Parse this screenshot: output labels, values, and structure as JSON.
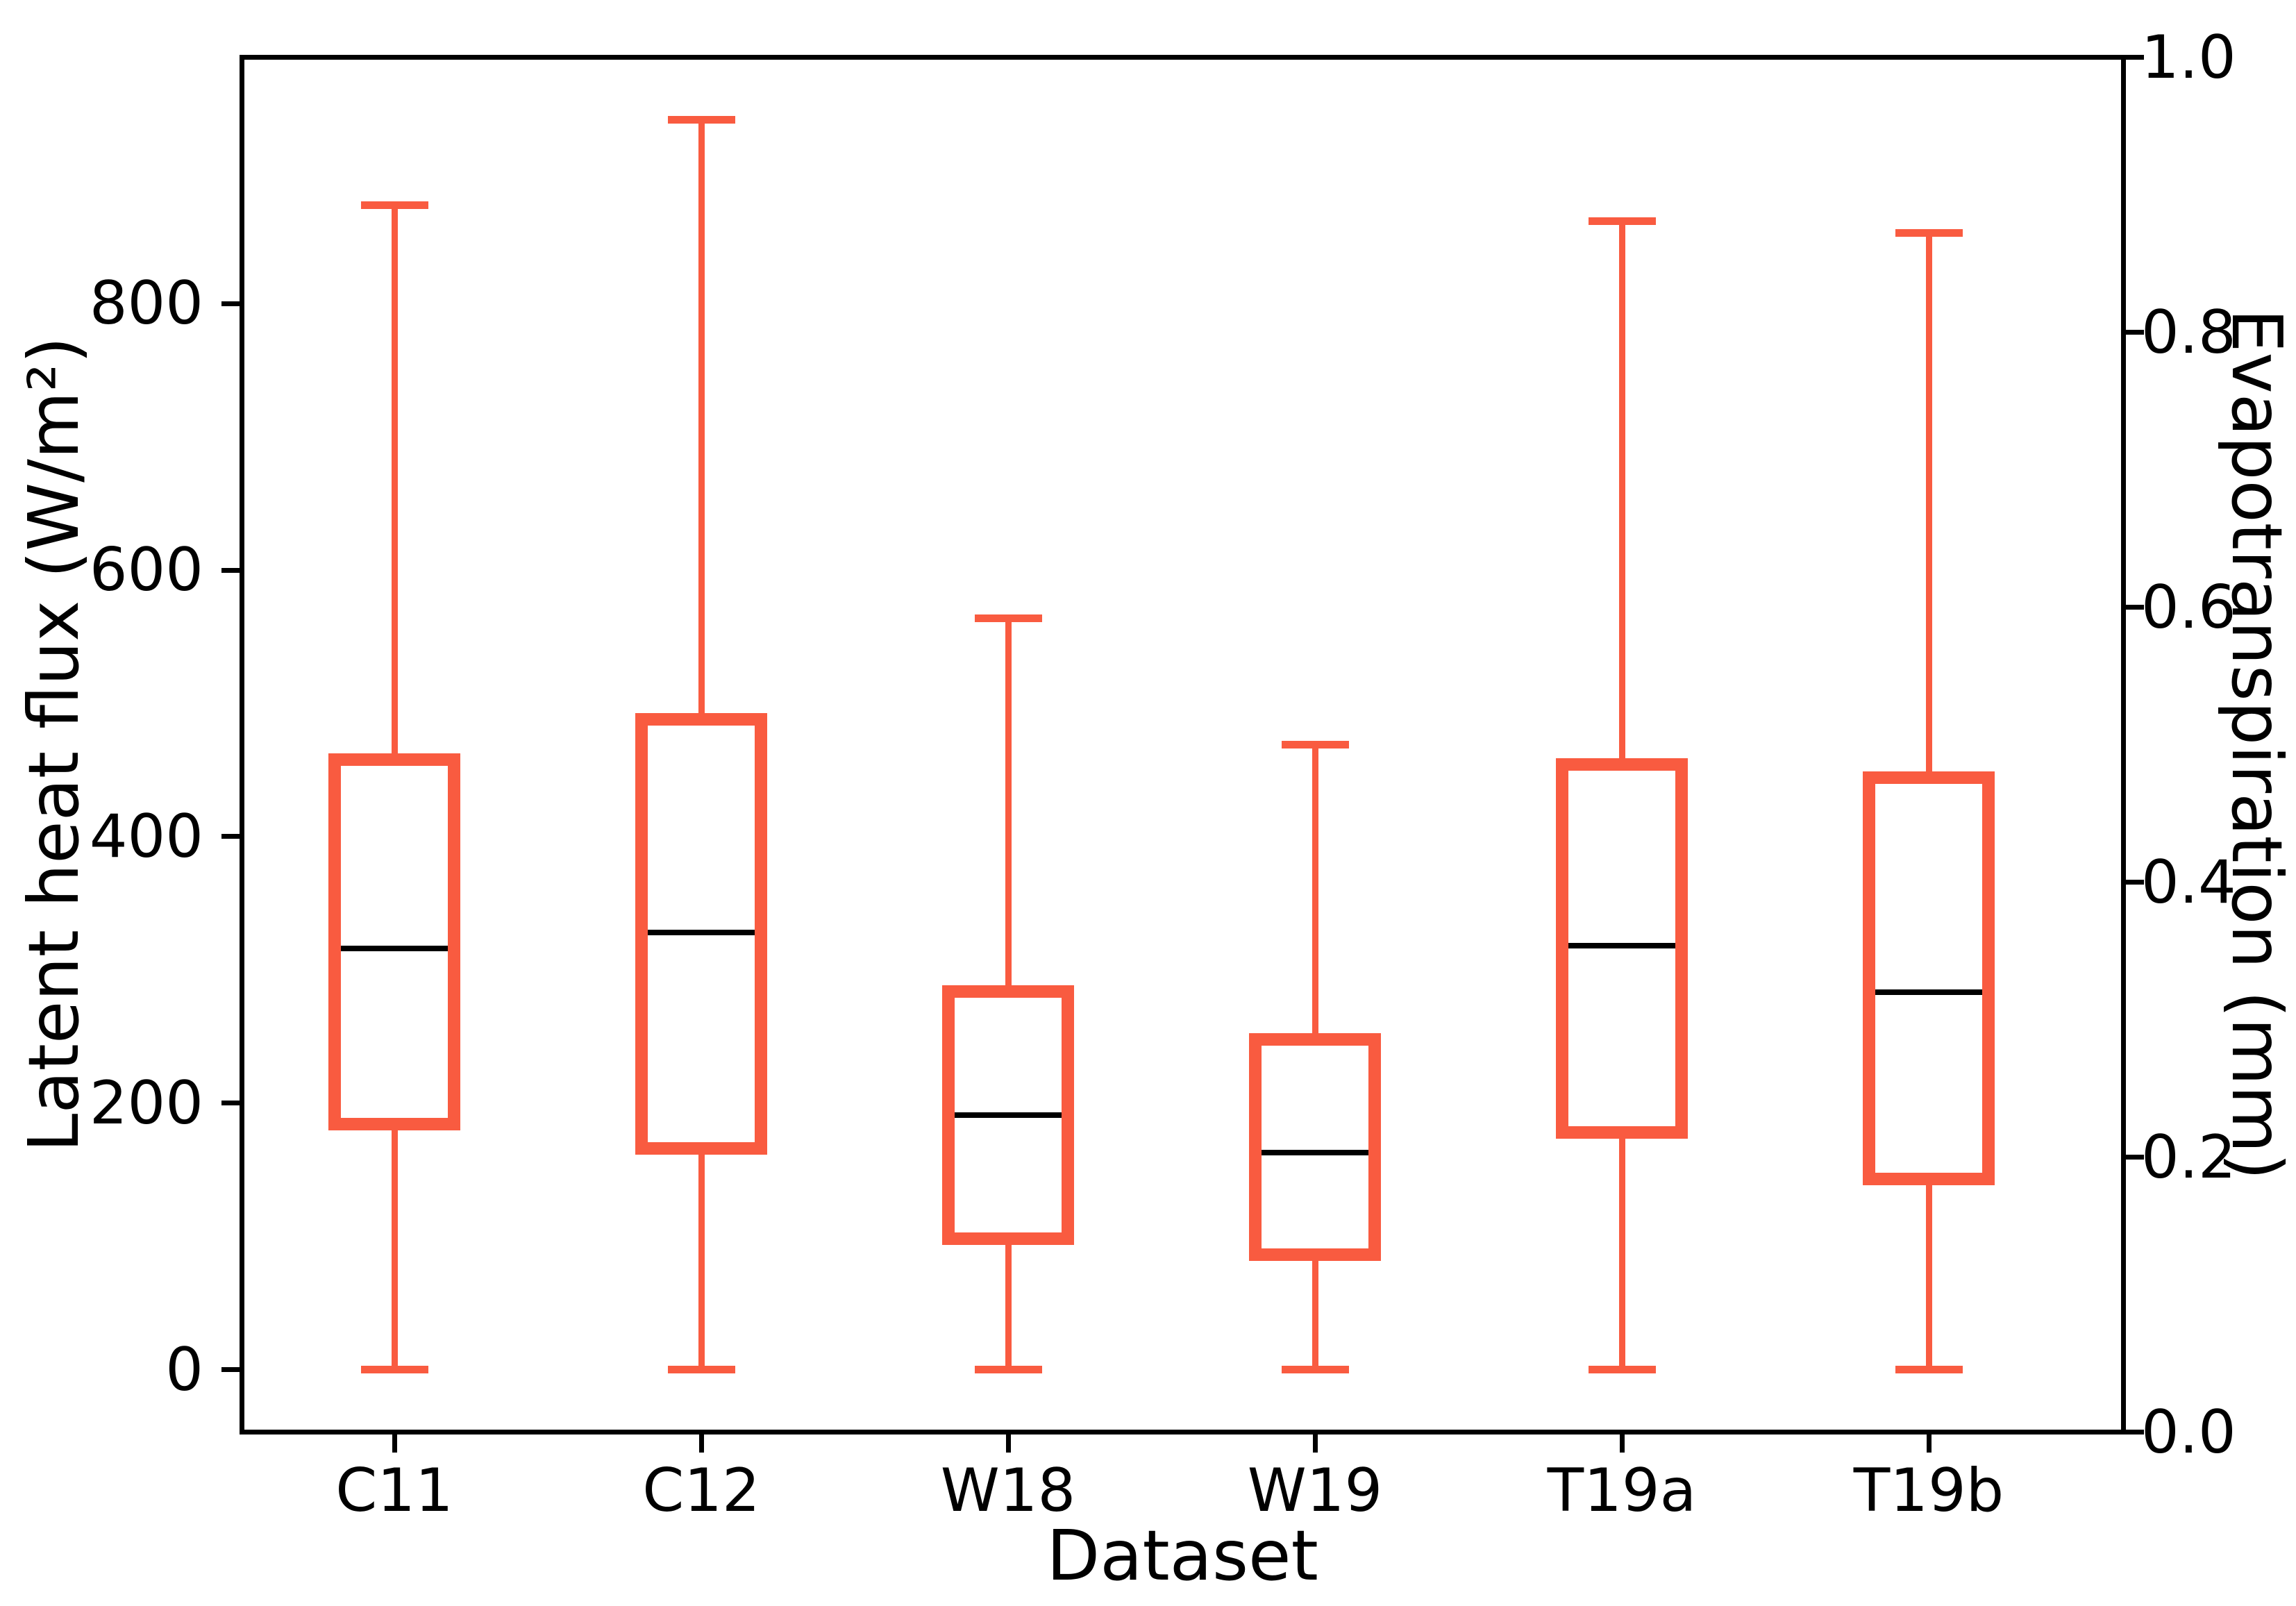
{
  "figure": {
    "background": "#ffffff",
    "box_color": "#f95b40",
    "median_color": "#000000",
    "axis_color": "#000000"
  },
  "chart_data": {
    "type": "boxplot",
    "title": "",
    "xlabel": "Dataset",
    "ylabel_left": "Latent heat flux (W/m²)",
    "ylabel_right": "Evapotranspiration (mm)",
    "categories": [
      "C11",
      "C12",
      "W18",
      "W19",
      "T19a",
      "T19b"
    ],
    "series": [
      {
        "name": "C11",
        "whisker_low": 0,
        "q1": 184,
        "median": 316,
        "q3": 458,
        "whisker_high": 874
      },
      {
        "name": "C12",
        "whisker_low": 0,
        "q1": 166,
        "median": 328,
        "q3": 488,
        "whisker_high": 938
      },
      {
        "name": "W18",
        "whisker_low": 0,
        "q1": 98,
        "median": 191,
        "q3": 284,
        "whisker_high": 564
      },
      {
        "name": "W19",
        "whisker_low": 0,
        "q1": 86,
        "median": 163,
        "q3": 248,
        "whisker_high": 469
      },
      {
        "name": "T19a",
        "whisker_low": 0,
        "q1": 178,
        "median": 318,
        "q3": 454,
        "whisker_high": 862
      },
      {
        "name": "T19b",
        "whisker_low": 0,
        "q1": 143,
        "median": 283,
        "q3": 444,
        "whisker_high": 853
      }
    ],
    "ylim_left": [
      -46.9,
      984.9
    ],
    "ylim_right": [
      0.0,
      1.0
    ],
    "yticks_left": [
      {
        "value": 0,
        "label": "0"
      },
      {
        "value": 200,
        "label": "200"
      },
      {
        "value": 400,
        "label": "400"
      },
      {
        "value": 600,
        "label": "600"
      },
      {
        "value": 800,
        "label": "800"
      }
    ],
    "yticks_right": [
      {
        "value": 0.0,
        "label": "0.0"
      },
      {
        "value": 0.2,
        "label": "0.2"
      },
      {
        "value": 0.4,
        "label": "0.4"
      },
      {
        "value": 0.6,
        "label": "0.6"
      },
      {
        "value": 0.8,
        "label": "0.8"
      },
      {
        "value": 1.0,
        "label": "1.0"
      }
    ],
    "grid": false,
    "legend": false
  }
}
